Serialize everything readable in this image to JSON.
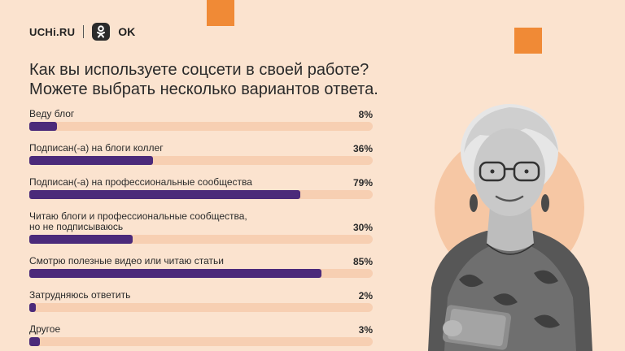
{
  "logos": {
    "uchi": "UCHi.RU",
    "ok": "OK"
  },
  "question": {
    "line1": "Как вы используете соцсети в своей работе?",
    "line2": "Можете выбрать несколько вариантов ответа."
  },
  "colors": {
    "background": "#fbe3cf",
    "accent": "#f08a36",
    "bar_fill": "#4b2a7a",
    "bar_track": "#f7cfb2"
  },
  "chart_data": {
    "type": "bar",
    "orientation": "horizontal",
    "title": "Как вы используете соцсети в своей работе? Можете выбрать несколько вариантов ответа.",
    "categories": [
      "Веду блог",
      "Подписан(-а) на блоги коллег",
      "Подписан(-а) на профессиональные сообщества",
      "Читаю блоги и профессиональные сообщества, но не подписываюсь",
      "Смотрю полезные видео или читаю статьи",
      "Затрудняюсь ответить",
      "Другое"
    ],
    "values": [
      8,
      36,
      79,
      30,
      85,
      2,
      3
    ],
    "value_labels": [
      "8%",
      "36%",
      "79%",
      "30%",
      "85%",
      "2%",
      "3%"
    ],
    "category_lines": [
      [
        "Веду блог"
      ],
      [
        "Подписан(-а) на блоги коллег"
      ],
      [
        "Подписан(-а) на профессиональные сообщества"
      ],
      [
        "Читаю блоги и профессиональные сообщества,",
        "но не подписываюсь"
      ],
      [
        "Смотрю полезные видео или читаю статьи"
      ],
      [
        "Затрудняюсь ответить"
      ],
      [
        "Другое"
      ]
    ],
    "xlim": [
      0,
      100
    ],
    "unit": "%"
  }
}
